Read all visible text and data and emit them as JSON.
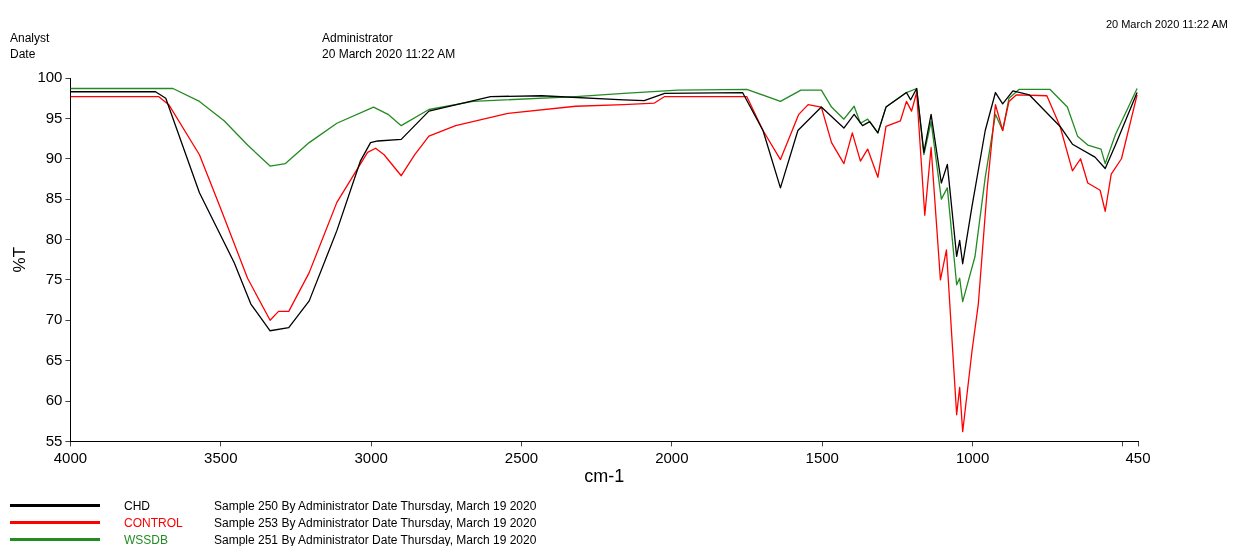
{
  "chart_data": {
    "type": "line",
    "xlabel": "cm-1",
    "ylabel": "%T",
    "xlim": [
      4000,
      450
    ],
    "xticks": [
      4000,
      3500,
      3000,
      2500,
      2000,
      1500,
      1000,
      {
        "value": 500,
        "label": null
      },
      450
    ],
    "ylim": [
      55,
      100
    ],
    "yticks": [
      55,
      60,
      65,
      70,
      75,
      80,
      85,
      90,
      95,
      100
    ],
    "grid": false,
    "legend": "bottom",
    "annotations": [
      "Analyst",
      "Date",
      "Administrator",
      "20 March 2020 11:22 AM",
      "20 March 2020 11:22 AM",
      "Sample 250 By Administrator Date Thursday, March 19 2020",
      "Sample 253 By Administrator Date Thursday, March 19 2020",
      "Sample 251 By Administrator Date Thursday, March 19 2020"
    ],
    "series": [
      {
        "name": "CHD",
        "color": "#000000",
        "x": [
          4000,
          3717,
          3683,
          3571,
          3455,
          3400,
          3336,
          3274,
          3206,
          3114,
          3036,
          3002,
          2978,
          2900,
          2808,
          2603,
          2433,
          2160,
          2092,
          2024,
          1765,
          1697,
          1639,
          1581,
          1503,
          1428,
          1394,
          1366,
          1342,
          1315,
          1288,
          1220,
          1206,
          1186,
          1162,
          1138,
          1104,
          1084,
          1053,
          1043,
          1033,
          1002,
          958,
          924,
          900,
          866,
          811,
          709,
          668,
          593,
          559,
          525,
          453
        ],
        "values": [
          98.3,
          98.3,
          97.5,
          85.8,
          77.1,
          72.0,
          68.7,
          69.1,
          72.4,
          81.1,
          89.7,
          92.0,
          92.2,
          92.4,
          95.9,
          97.7,
          97.8,
          97.3,
          97.2,
          98.1,
          98.2,
          93.5,
          86.4,
          93.5,
          96.4,
          93.8,
          95.5,
          94.1,
          94.6,
          93.2,
          96.4,
          98.2,
          97.3,
          98.7,
          90.8,
          95.5,
          87.0,
          89.3,
          77.9,
          79.9,
          77.0,
          84.1,
          93.5,
          98.2,
          96.8,
          98.4,
          97.9,
          94.0,
          91.8,
          90.2,
          88.8,
          91.7,
          98.2
        ]
      },
      {
        "name": "CONTROL",
        "color": "#ff0000",
        "x": [
          4000,
          3707,
          3673,
          3571,
          3503,
          3411,
          3336,
          3308,
          3274,
          3206,
          3114,
          3012,
          2985,
          2957,
          2900,
          2855,
          2808,
          2719,
          2549,
          2320,
          2160,
          2058,
          2024,
          1751,
          1697,
          1639,
          1578,
          1547,
          1503,
          1469,
          1428,
          1400,
          1373,
          1349,
          1315,
          1288,
          1240,
          1220,
          1203,
          1186,
          1159,
          1138,
          1107,
          1087,
          1053,
          1043,
          1033,
          1002,
          981,
          951,
          924,
          900,
          879,
          855,
          753,
          709,
          668,
          641,
          617,
          576,
          559,
          539,
          505,
          453
        ],
        "values": [
          97.7,
          97.7,
          96.7,
          90.5,
          84.1,
          75.2,
          70.0,
          71.1,
          71.1,
          75.9,
          84.6,
          90.8,
          91.3,
          90.5,
          87.9,
          90.5,
          92.8,
          94.1,
          95.6,
          96.5,
          96.7,
          96.9,
          97.7,
          97.7,
          93.5,
          89.9,
          95.5,
          96.7,
          96.4,
          92.0,
          89.4,
          93.2,
          89.7,
          91.2,
          87.7,
          94.0,
          94.7,
          97.1,
          95.9,
          98.2,
          83.0,
          91.4,
          75.0,
          78.7,
          58.3,
          61.7,
          56.2,
          66.2,
          72.0,
          86.5,
          96.7,
          93.5,
          97.1,
          97.9,
          97.8,
          94.0,
          88.5,
          90.0,
          87.0,
          86.1,
          83.5,
          88.1,
          90.0,
          97.9
        ]
      },
      {
        "name": "WSSDB",
        "color": "#228b22",
        "x": [
          4000,
          3659,
          3571,
          3489,
          3411,
          3336,
          3285,
          3206,
          3114,
          2992,
          2944,
          2900,
          2808,
          2661,
          2320,
          2160,
          1980,
          1751,
          1639,
          1571,
          1503,
          1469,
          1428,
          1394,
          1373,
          1349,
          1315,
          1288,
          1220,
          1186,
          1162,
          1138,
          1104,
          1084,
          1053,
          1043,
          1033,
          992,
          958,
          924,
          900,
          879,
          845,
          743,
          685,
          651,
          617,
          573,
          559,
          525,
          453
        ],
        "values": [
          98.7,
          98.7,
          97.1,
          94.7,
          91.7,
          89.1,
          89.4,
          92.0,
          94.4,
          96.4,
          95.5,
          94.1,
          96.1,
          97.1,
          97.7,
          98.1,
          98.5,
          98.6,
          97.1,
          98.5,
          98.5,
          96.4,
          94.9,
          96.5,
          94.4,
          94.9,
          93.2,
          96.4,
          98.2,
          98.7,
          90.5,
          94.6,
          85.0,
          86.4,
          74.4,
          75.2,
          72.3,
          77.9,
          87.7,
          95.5,
          93.5,
          97.5,
          98.6,
          98.6,
          96.4,
          92.8,
          91.7,
          91.2,
          89.4,
          93.0,
          98.7
        ]
      }
    ]
  }
}
